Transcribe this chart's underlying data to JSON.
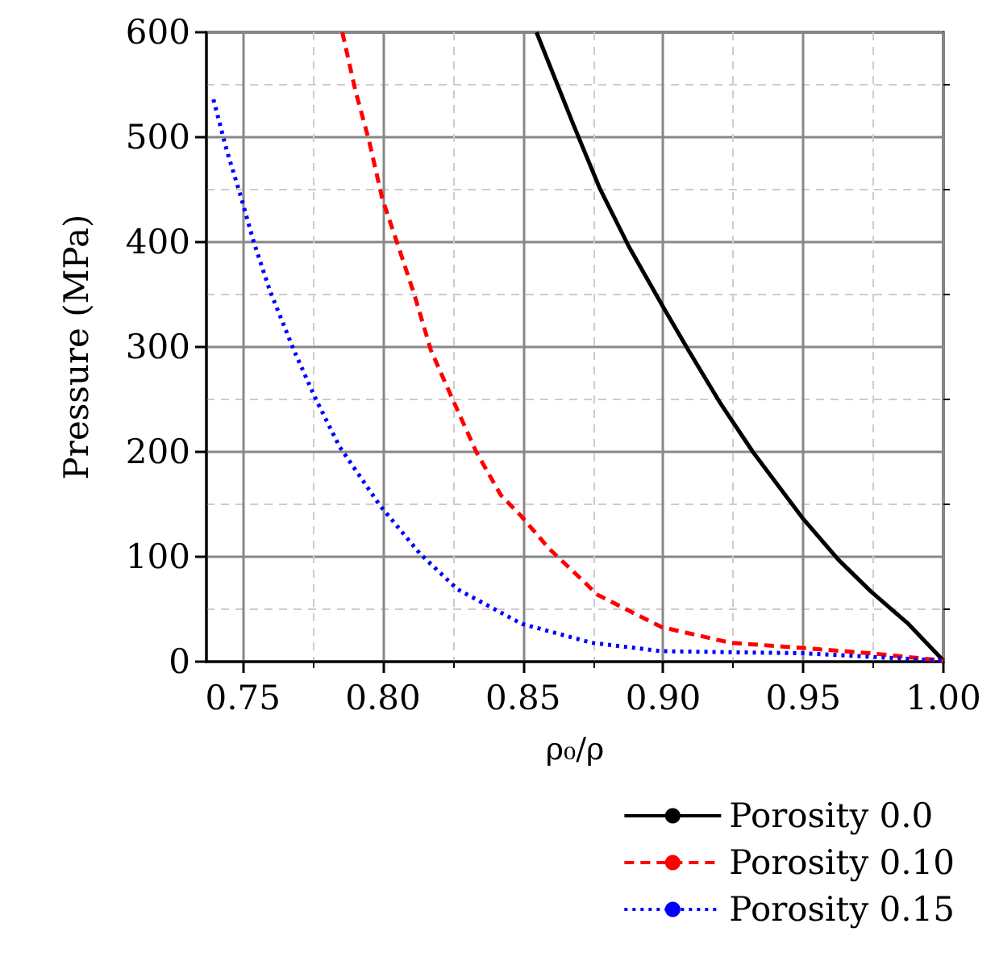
{
  "chart_data": {
    "type": "line",
    "xlabel": "ρ₀/ρ",
    "ylabel": "Pressure (MPa)",
    "xlim": [
      0.737,
      1.0
    ],
    "xticks": [
      {
        "value": 0.75,
        "label": "0.75"
      },
      {
        "value": 0.8,
        "label": "0.80"
      },
      {
        "value": 0.85,
        "label": "0.85"
      },
      {
        "value": 0.9,
        "label": "0.90"
      },
      {
        "value": 0.95,
        "label": "0.95"
      },
      {
        "value": 1.0,
        "label": "1.00"
      }
    ],
    "ylim": [
      0,
      600
    ],
    "yticks": [
      0,
      100,
      200,
      300,
      400,
      500,
      600
    ],
    "grid": true,
    "legend": "bottom right",
    "marker": "none",
    "series": [
      {
        "name": "Porosity 0.0",
        "color": "#000000",
        "line_style": "solid",
        "x": [
          0.8548,
          0.8678,
          0.8774,
          0.8879,
          0.9,
          0.909,
          0.9205,
          0.932,
          0.95,
          0.9626,
          0.9741,
          0.9875,
          1.0
        ],
        "values": [
          600,
          513,
          451,
          395,
          338,
          297,
          246,
          200,
          136,
          97,
          67,
          36,
          1
        ]
      },
      {
        "name": "Porosity 0.10",
        "color": "#ff0000",
        "line_style": "dashed",
        "x": [
          0.7855,
          0.7902,
          0.795,
          0.7998,
          0.8056,
          0.8113,
          0.8171,
          0.8247,
          0.8333,
          0.842,
          0.8496,
          0.8592,
          0.8726,
          0.8764,
          0.8994,
          0.924,
          0.95,
          0.974,
          1.0
        ],
        "values": [
          600,
          544,
          497,
          441,
          395,
          349,
          297,
          251,
          200,
          159,
          138,
          108,
          74,
          64,
          33,
          18,
          13,
          8,
          1
        ]
      },
      {
        "name": "Porosity 0.15",
        "color": "#0000ff",
        "line_style": "dotted",
        "x": [
          0.7395,
          0.7443,
          0.749,
          0.7539,
          0.7596,
          0.7682,
          0.7759,
          0.7845,
          0.7989,
          0.8132,
          0.8266,
          0.8496,
          0.8745,
          0.8994,
          0.95,
          1.0
        ],
        "values": [
          536,
          487,
          446,
          400,
          354,
          297,
          251,
          205,
          149,
          103,
          69,
          36,
          18,
          10,
          8,
          1
        ]
      }
    ]
  }
}
